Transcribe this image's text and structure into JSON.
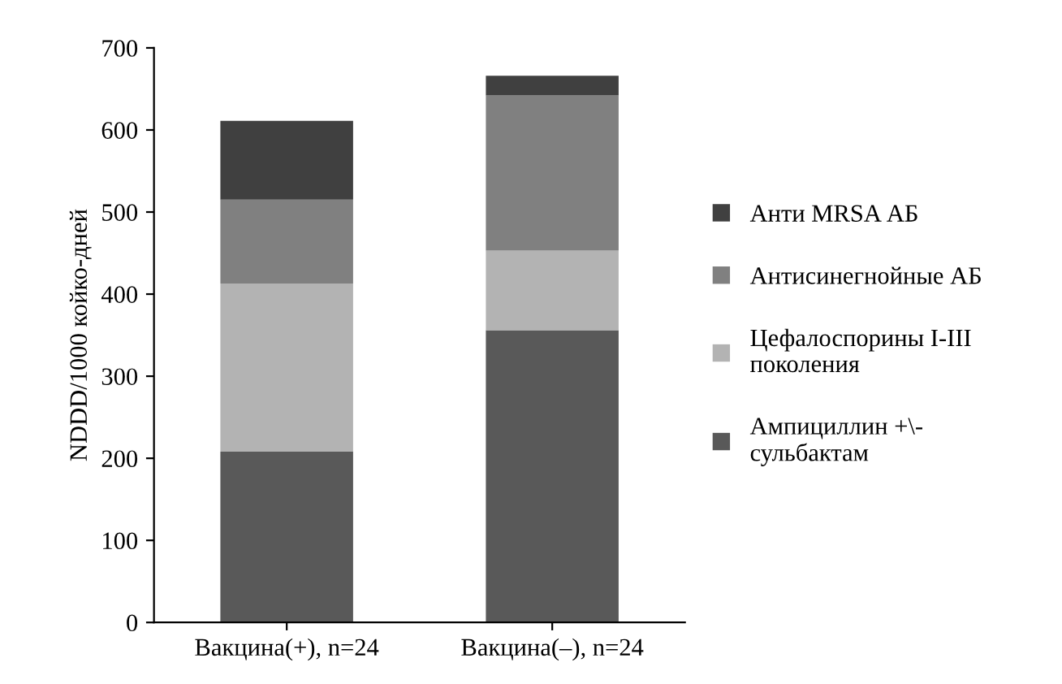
{
  "chart_data": {
    "type": "bar",
    "stacked": true,
    "ylabel": "NDDD/1000 койко-дней",
    "categories": [
      "Вакцина(+), n=24",
      "Вакцина(–), n=24"
    ],
    "series": [
      {
        "name": "Ампициллин +\\-\nсульбактам",
        "color": "#595959",
        "values": [
          208,
          356
        ]
      },
      {
        "name": "Цефалоспорины I-III\nпоколения",
        "color": "#b3b3b3",
        "values": [
          205,
          97
        ]
      },
      {
        "name": "Антисинегнойные АБ",
        "color": "#808080",
        "values": [
          102,
          189
        ]
      },
      {
        "name": "Анти MRSA АБ",
        "color": "#404040",
        "values": [
          96,
          24
        ]
      }
    ],
    "ylim": [
      0,
      700
    ],
    "yticks": [
      0,
      100,
      200,
      300,
      400,
      500,
      600,
      700
    ],
    "grid": false,
    "legend": "right"
  }
}
